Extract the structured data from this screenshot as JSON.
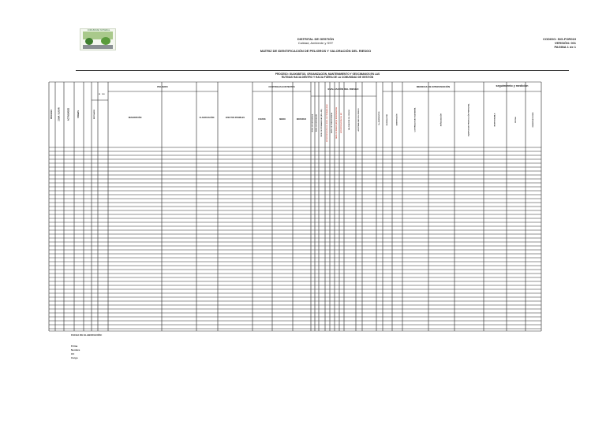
{
  "header": {
    "org_line1": "DISTRITAL DE GESTIÓN",
    "org_line2": "Calidad, Ambiente y SST",
    "matrix_title": "MATRIZ DE IDENTIFICACIÓN DE PELIGROS Y VALORACIÓN DEL RIESGO",
    "code": "CODIGO: SIG-FOR019",
    "version": "VERSIÓN: 001",
    "page": "PAGINA 1 de 1",
    "logo_text": "COMUNIDAD NOTARIAL"
  },
  "process_text": {
    "line1": "PROCESO: GUAYABITOS, ORGANIZACIÓN, MANTENIMIENTO Y GEOCIMANOS EN LAS",
    "line2": "RUTINAS HACIA DENTRO Y HACIA FUERA DE LA COMUNIDAD DE GESTIÓN"
  },
  "columns": {
    "c1": "PROCESO",
    "c2": "ZONA / LUGAR",
    "c3": "ACTIVIDADES",
    "c4": "TAREAS",
    "c5a": "RUTINARIO",
    "c5b": "SI",
    "c5c": "NO",
    "peligro_group": "PELIGRO",
    "peligro_desc": "DESCRIPCIÓN",
    "peligro_clas": "CLASIFICACIÓN",
    "efectos": "EFECTOS POSIBLES",
    "controles_group": "CONTROLES EXISTENTES",
    "ctrl_fuente": "FUENTE",
    "ctrl_medio": "MEDIO",
    "ctrl_individuo": "INDIVIDUO",
    "eval_group": "EVALUACIÓN DEL RIESGO",
    "eval_cols": [
      "NIVEL DE DEFICIENCIA",
      "NIVEL DE EXPOSICIÓN",
      "NIVEL DE PROBABILIDAD (ND x NE)",
      "INTERPRETACIÓN DEL NIVEL DE PROBABILIDAD",
      "NIVEL DE CONSECUENCIA",
      "NIVEL DE RIESGO (NR) E INTERVENCIÓN",
      "INTERPRETACIÓN DEL NR"
    ],
    "valoracion": "VALORACIÓN DEL RIESGO",
    "aceptabilidad": "ACEPTABILIDAD DEL RIESGO",
    "criterios_n": "No EXPUESTOS",
    "medidas_group": "MEDIDAS DE INTERVENCIÓN",
    "medidas_cols": [
      "ELIMINACIÓN",
      "SUSTITUCIÓN",
      "CONTROLES DE INGENIERÍA",
      "SEÑALIZACIÓN",
      "EQUIPOS DE PROTECCIÓN PERSONAL"
    ],
    "seguimiento_group": "seguimiento y medición",
    "seg_cols": [
      "RESPONSABLE",
      "FECHA",
      "OBSERVACIONES"
    ]
  },
  "footer": {
    "fecha": "FECHA DE ELABORACIÓN:",
    "firma": "Firma",
    "nombre": "Nombre",
    "cc": "CC",
    "cargo": "Cargo"
  }
}
